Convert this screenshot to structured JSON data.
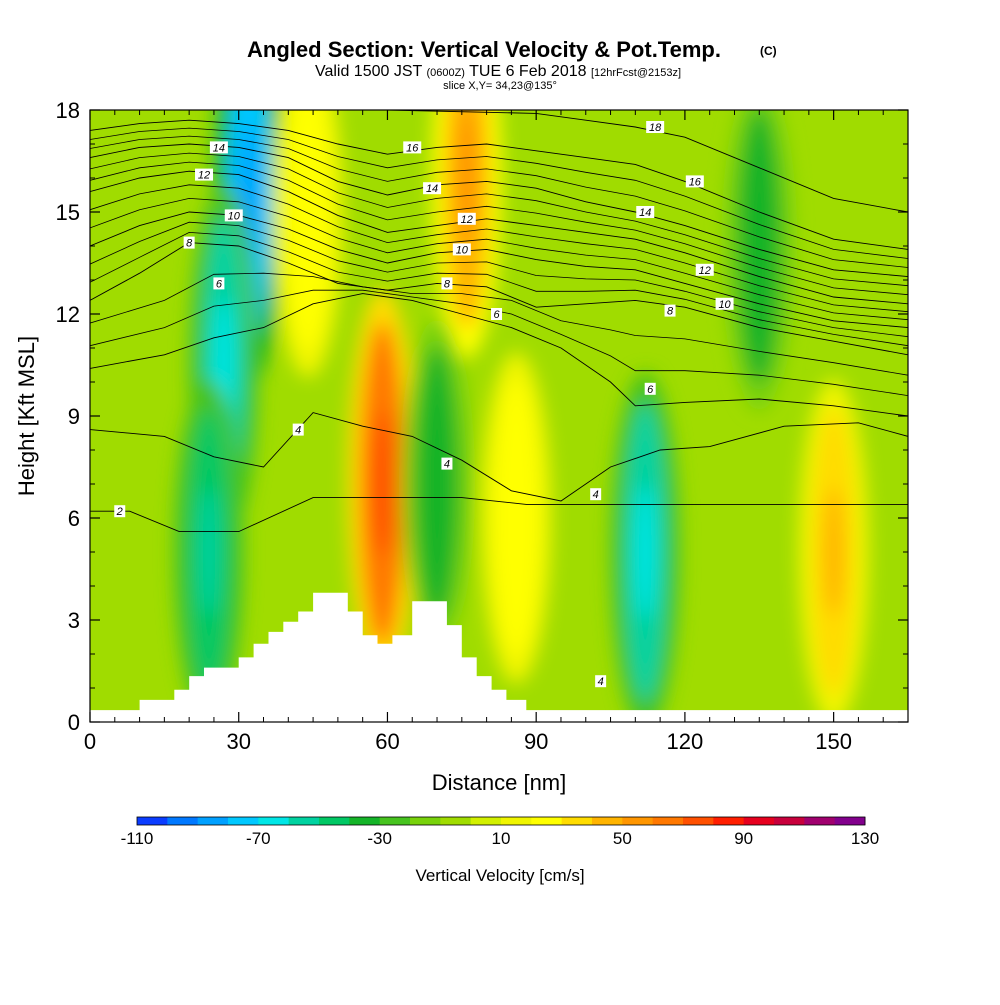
{
  "title": {
    "main": "Angled Section: Vertical Velocity & Pot.Temp.",
    "copyright": "(C)",
    "valid_prefix": "Valid 1500 JST",
    "valid_utc": "(0600Z)",
    "valid_date": "TUE 6 Feb 2018",
    "forecast": "[12hrFcst@2153z]",
    "slice": "slice X,Y= 34,23@135°"
  },
  "chart_data": {
    "type": "heatmap",
    "xlabel": "Distance [nm]",
    "ylabel": "Height [Kft MSL]",
    "xlim": [
      0,
      165
    ],
    "ylim": [
      0,
      18
    ],
    "xticks": [
      0,
      30,
      60,
      90,
      120,
      150
    ],
    "yticks": [
      0,
      3,
      6,
      9,
      12,
      15,
      18
    ],
    "colorbar": {
      "label": "Vertical Velocity [cm/s]",
      "min": -110,
      "max": 130,
      "step": 10,
      "tick_labels": [
        -110,
        -70,
        -30,
        10,
        50,
        90,
        130
      ],
      "colors": [
        "#0000ff",
        "#0a3cff",
        "#0078ff",
        "#00a0ff",
        "#00c8ff",
        "#00e6e6",
        "#00d2a0",
        "#00c864",
        "#14b428",
        "#46c31e",
        "#78d20a",
        "#a0dc00",
        "#d2f000",
        "#f0f500",
        "#ffff00",
        "#ffdc00",
        "#ffb400",
        "#ff9600",
        "#ff7800",
        "#ff5000",
        "#ff1e00",
        "#e6001e",
        "#c8003c",
        "#a0006e",
        "#82008c",
        "#6e00a0"
      ]
    },
    "vertical_velocity_features": [
      {
        "type": "downdraft",
        "x": 32,
        "y": 15.5,
        "value": -70
      },
      {
        "type": "downdraft",
        "x": 27,
        "y": 10.5,
        "value": -50
      },
      {
        "type": "downdraft",
        "x": 24,
        "y": 5,
        "value": -40
      },
      {
        "type": "updraft",
        "x": 44,
        "y": 15,
        "value": 30
      },
      {
        "type": "updraft",
        "x": 59,
        "y": 7,
        "value": 70
      },
      {
        "type": "updraft",
        "x": 76,
        "y": 16,
        "value": 50
      },
      {
        "type": "downdraft",
        "x": 70,
        "y": 7,
        "value": -30
      },
      {
        "type": "updraft",
        "x": 86,
        "y": 6,
        "value": 30
      },
      {
        "type": "downdraft",
        "x": 112,
        "y": 5,
        "value": -50
      },
      {
        "type": "updraft",
        "x": 150,
        "y": 5,
        "value": 40
      },
      {
        "type": "downdraft",
        "x": 135,
        "y": 14,
        "value": -30
      }
    ],
    "terrain_height": [
      [
        0,
        0.35
      ],
      [
        10,
        0.35
      ],
      [
        10,
        0.65
      ],
      [
        17,
        0.65
      ],
      [
        17,
        0.95
      ],
      [
        20,
        0.95
      ],
      [
        20,
        1.35
      ],
      [
        23,
        1.35
      ],
      [
        23,
        1.6
      ],
      [
        30,
        1.6
      ],
      [
        30,
        1.9
      ],
      [
        33,
        1.9
      ],
      [
        33,
        2.3
      ],
      [
        36,
        2.3
      ],
      [
        36,
        2.65
      ],
      [
        39,
        2.65
      ],
      [
        39,
        2.95
      ],
      [
        42,
        2.95
      ],
      [
        42,
        3.25
      ],
      [
        45,
        3.25
      ],
      [
        45,
        3.8
      ],
      [
        52,
        3.8
      ],
      [
        52,
        3.25
      ],
      [
        55,
        3.25
      ],
      [
        55,
        2.55
      ],
      [
        58,
        2.55
      ],
      [
        58,
        2.3
      ],
      [
        61,
        2.3
      ],
      [
        61,
        2.55
      ],
      [
        65,
        2.55
      ],
      [
        65,
        3.55
      ],
      [
        72,
        3.55
      ],
      [
        72,
        2.85
      ],
      [
        75,
        2.85
      ],
      [
        75,
        1.9
      ],
      [
        78,
        1.9
      ],
      [
        78,
        1.35
      ],
      [
        81,
        1.35
      ],
      [
        81,
        0.95
      ],
      [
        84,
        0.95
      ],
      [
        84,
        0.65
      ],
      [
        88,
        0.65
      ],
      [
        88,
        0.35
      ],
      [
        165,
        0.35
      ]
    ],
    "potential_temperature_contours": [
      {
        "label": "2",
        "x": [
          0,
          8,
          18,
          30,
          45,
          60,
          75,
          88,
          100,
          115,
          130,
          150,
          165
        ],
        "y": [
          6.2,
          6.2,
          5.6,
          5.6,
          6.6,
          6.6,
          6.6,
          6.4,
          6.4,
          6.4,
          6.4,
          6.4,
          6.4
        ]
      },
      {
        "label": "4",
        "x": [
          0,
          15,
          25,
          35,
          45,
          55,
          65,
          75,
          85,
          95,
          105,
          115,
          125,
          140,
          155,
          165
        ],
        "y": [
          8.6,
          8.4,
          7.8,
          7.5,
          9.1,
          8.7,
          8.4,
          7.7,
          6.8,
          6.5,
          7.5,
          8.0,
          8.1,
          8.7,
          8.8,
          8.4
        ]
      },
      {
        "label": "6",
        "x": [
          0,
          15,
          25,
          35,
          45,
          55,
          65,
          75,
          85,
          95,
          105,
          110,
          120,
          135,
          150,
          165
        ],
        "y": [
          10.4,
          10.8,
          11.3,
          11.6,
          12.3,
          12.6,
          12.4,
          12.0,
          11.6,
          11.0,
          10.0,
          9.3,
          9.4,
          9.5,
          9.3,
          9.0
        ]
      },
      {
        "label": "8",
        "x": [
          0,
          10,
          20,
          30,
          40,
          50,
          60,
          70,
          80,
          90,
          100,
          110,
          120,
          135,
          150,
          165
        ],
        "y": [
          12.4,
          13.2,
          14.1,
          14.0,
          13.5,
          12.9,
          12.7,
          12.9,
          12.8,
          12.2,
          12.3,
          12.4,
          12.2,
          11.6,
          11.2,
          10.8
        ]
      },
      {
        "label": "10",
        "x": [
          0,
          10,
          20,
          30,
          40,
          50,
          60,
          70,
          80,
          90,
          100,
          110,
          120,
          135,
          150,
          165
        ],
        "y": [
          14.0,
          14.6,
          15.0,
          14.9,
          14.5,
          13.9,
          13.5,
          13.8,
          13.9,
          13.6,
          13.4,
          13.3,
          12.9,
          12.3,
          11.8,
          11.6
        ]
      },
      {
        "label": "12",
        "x": [
          0,
          10,
          20,
          30,
          40,
          50,
          60,
          70,
          80,
          90,
          100,
          110,
          120,
          135,
          150,
          165
        ],
        "y": [
          15.6,
          16.0,
          16.2,
          16.1,
          15.6,
          14.9,
          14.4,
          14.6,
          14.8,
          14.6,
          14.4,
          14.2,
          13.8,
          13.1,
          12.5,
          12.3
        ]
      },
      {
        "label": "14",
        "x": [
          0,
          10,
          20,
          30,
          40,
          50,
          60,
          70,
          80,
          90,
          100,
          110,
          120,
          135,
          150,
          165
        ],
        "y": [
          16.6,
          16.9,
          17.0,
          16.9,
          16.6,
          15.9,
          15.5,
          15.8,
          15.9,
          15.7,
          15.3,
          15.0,
          14.6,
          13.9,
          13.3,
          13.1
        ]
      },
      {
        "label": "16",
        "x": [
          0,
          10,
          20,
          30,
          40,
          50,
          60,
          70,
          80,
          90,
          100,
          110,
          120,
          135,
          150,
          165
        ],
        "y": [
          17.4,
          17.6,
          17.7,
          17.6,
          17.4,
          17.0,
          16.7,
          16.9,
          17.0,
          16.8,
          16.6,
          16.4,
          15.9,
          15.0,
          14.2,
          13.9
        ]
      },
      {
        "label": "18",
        "x": [
          0,
          30,
          60,
          90,
          100,
          110,
          120,
          135,
          150,
          165
        ],
        "y": [
          18.0,
          18.0,
          18.0,
          17.9,
          17.7,
          17.5,
          17.2,
          16.3,
          15.4,
          15.0
        ]
      }
    ],
    "contour_labels": [
      {
        "text": "2",
        "x": 6,
        "y": 6.2
      },
      {
        "text": "4",
        "x": 42,
        "y": 8.6
      },
      {
        "text": "4",
        "x": 72,
        "y": 7.6
      },
      {
        "text": "4",
        "x": 102,
        "y": 6.7
      },
      {
        "text": "4",
        "x": 103,
        "y": 1.2
      },
      {
        "text": "6",
        "x": 26,
        "y": 12.9
      },
      {
        "text": "6",
        "x": 82,
        "y": 12.0
      },
      {
        "text": "6",
        "x": 113,
        "y": 9.8
      },
      {
        "text": "8",
        "x": 20,
        "y": 14.1
      },
      {
        "text": "8",
        "x": 72,
        "y": 12.9
      },
      {
        "text": "8",
        "x": 117,
        "y": 12.1
      },
      {
        "text": "10",
        "x": 29,
        "y": 14.9
      },
      {
        "text": "10",
        "x": 75,
        "y": 13.9
      },
      {
        "text": "10",
        "x": 128,
        "y": 12.3
      },
      {
        "text": "12",
        "x": 23,
        "y": 16.1
      },
      {
        "text": "12",
        "x": 76,
        "y": 14.8
      },
      {
        "text": "12",
        "x": 124,
        "y": 13.3
      },
      {
        "text": "14",
        "x": 26,
        "y": 16.9
      },
      {
        "text": "14",
        "x": 69,
        "y": 15.7
      },
      {
        "text": "14",
        "x": 112,
        "y": 15.0
      },
      {
        "text": "16",
        "x": 65,
        "y": 16.9
      },
      {
        "text": "16",
        "x": 122,
        "y": 15.9
      },
      {
        "text": "18",
        "x": 114,
        "y": 17.5
      }
    ]
  }
}
